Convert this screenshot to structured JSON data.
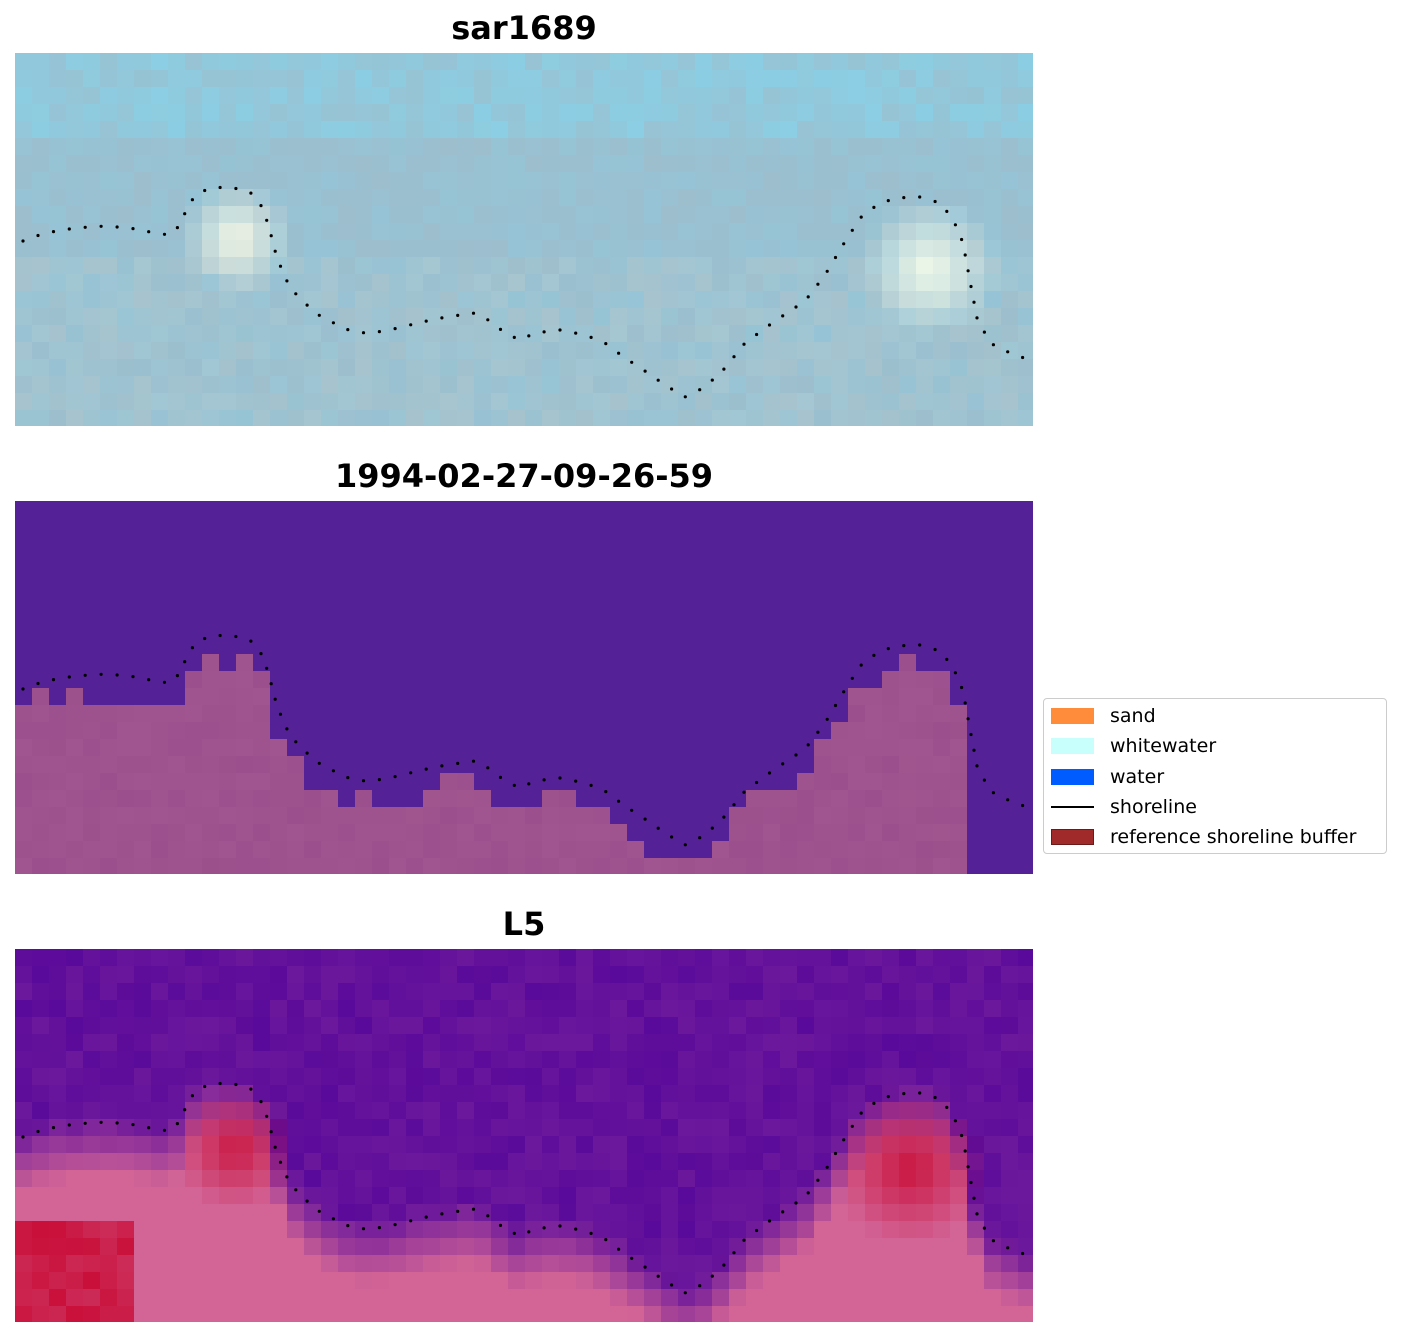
{
  "panels": [
    {
      "title": "sar1689",
      "style": "rgb"
    },
    {
      "title": "1994-02-27-09-26-59",
      "style": "classified"
    },
    {
      "title": "L5",
      "style": "index"
    }
  ],
  "legend": {
    "items": [
      {
        "label": "sand",
        "kind": "patch",
        "color": "#ff8c3a"
      },
      {
        "label": "whitewater",
        "kind": "patch",
        "color": "#c8fffd"
      },
      {
        "label": "water",
        "kind": "patch",
        "color": "#005cff"
      },
      {
        "label": "shoreline",
        "kind": "line",
        "color": "#000000"
      },
      {
        "label": "reference shoreline buffer",
        "kind": "patch",
        "color": "#a02a2a"
      }
    ]
  },
  "colors": {
    "classified_water": "#542296",
    "classified_land": "#9b4f8c",
    "index_low": "#5a0a9a",
    "index_high": "#c8062f",
    "rgb_base": "#9cbecd"
  }
}
